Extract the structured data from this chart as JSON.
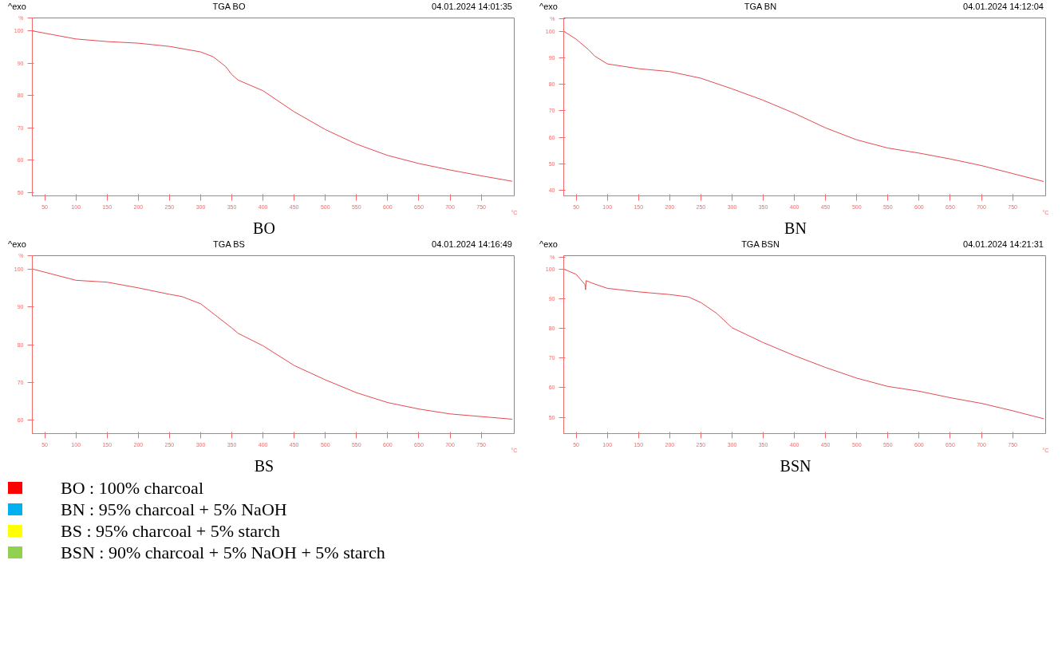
{
  "chart_data": [
    {
      "type": "line",
      "title": "TGA BO",
      "annotations": [
        "^exo",
        "04.01.2024 14:01:35",
        "BO"
      ],
      "xlabel": "°C",
      "xlim": [
        30,
        803
      ],
      "x": [
        30,
        100,
        150,
        200,
        250,
        300,
        320,
        340,
        350,
        360,
        400,
        450,
        500,
        550,
        600,
        650,
        700,
        750,
        800
      ],
      "series": [
        {
          "color": "#e34a50",
          "values": [
            100,
            97.5,
            96.7,
            96.2,
            95.2,
            93.5,
            92,
            89,
            86.5,
            84.8,
            81.5,
            75,
            69.5,
            65,
            61.5,
            59,
            57,
            55.2,
            53.5
          ]
        }
      ],
      "xticks": [
        50,
        100,
        150,
        200,
        250,
        300,
        350,
        400,
        450,
        500,
        550,
        600,
        650,
        700,
        750
      ],
      "ylim": [
        49,
        104
      ],
      "yticks": [
        50,
        60,
        70,
        80,
        90,
        100,
        {
          "value": 104,
          "label": "%"
        }
      ]
    },
    {
      "type": "line",
      "title": "TGA BN",
      "annotations": [
        "^exo",
        "04.01.2024 14:12:04",
        "BN"
      ],
      "x": [
        30,
        50,
        70,
        80,
        100,
        150,
        200,
        250,
        300,
        350,
        400,
        450,
        500,
        550,
        600,
        650,
        700,
        750,
        800
      ],
      "series": [
        {
          "color": "#e34a50",
          "values": [
            100,
            97,
            93,
            90.6,
            87.7,
            85.9,
            84.8,
            82.3,
            78.3,
            74,
            69.1,
            63.6,
            59.1,
            56,
            54.1,
            51.9,
            49.4,
            46.4,
            43.4
          ]
        }
      ],
      "xlabel": "°C",
      "xlim": [
        30,
        803
      ],
      "xticks": [
        50,
        100,
        150,
        200,
        250,
        300,
        350,
        400,
        450,
        500,
        550,
        600,
        650,
        700,
        750
      ],
      "ylim": [
        38,
        105
      ],
      "yticks": [
        40,
        50,
        60,
        70,
        80,
        90,
        100,
        {
          "value": 104.8,
          "label": "%"
        }
      ]
    },
    {
      "type": "line",
      "title": "TGA BS",
      "annotations": [
        "^exo",
        "04.01.2024 14:16:49",
        "BS"
      ],
      "x": [
        30,
        100,
        150,
        200,
        250,
        270,
        300,
        350,
        360,
        400,
        450,
        500,
        550,
        600,
        650,
        700,
        750,
        800
      ],
      "series": [
        {
          "color": "#e34a50",
          "values": [
            100,
            97,
            96.5,
            95,
            93.3,
            92.7,
            90.8,
            84.4,
            83,
            79.7,
            74.5,
            70.7,
            67.3,
            64.7,
            63,
            61.7,
            61,
            60.3
          ]
        }
      ],
      "xlabel": "°C",
      "xlim": [
        30,
        803
      ],
      "xticks": [
        50,
        100,
        150,
        200,
        250,
        300,
        350,
        400,
        450,
        500,
        550,
        600,
        650,
        700,
        750
      ],
      "ylim": [
        56.5,
        103.5
      ],
      "yticks": [
        60,
        70,
        80,
        90,
        100,
        {
          "value": 103.4,
          "label": "%"
        }
      ]
    },
    {
      "type": "line",
      "title": "TGA BSN",
      "annotations": [
        "^exo",
        "04.01.2024 14:21:31",
        "BSN"
      ],
      "x": [
        30,
        50,
        64,
        65,
        66,
        75,
        100,
        150,
        200,
        230,
        250,
        275,
        300,
        350,
        400,
        450,
        500,
        550,
        600,
        650,
        700,
        750,
        800
      ],
      "series": [
        {
          "color": "#e34a50",
          "values": [
            100,
            98.2,
            94.8,
            93,
            96.1,
            95.3,
            93.5,
            92.3,
            91.4,
            90.6,
            88.7,
            85.1,
            80.2,
            75.2,
            70.8,
            66.8,
            63.2,
            60.4,
            58.8,
            56.6,
            54.7,
            52.2,
            49.5
          ]
        }
      ],
      "xlabel": "°C",
      "xlim": [
        30,
        803
      ],
      "xticks": [
        50,
        100,
        150,
        200,
        250,
        300,
        350,
        400,
        450,
        500,
        550,
        600,
        650,
        700,
        750
      ],
      "ylim": [
        44.5,
        104.5
      ],
      "yticks": [
        50,
        60,
        70,
        80,
        90,
        100,
        {
          "value": 104,
          "label": "%"
        }
      ]
    },
    {
      "type": "other",
      "annotations": [
        "BO : 100% charcoal",
        "BN : 95% charcoal + 5% NaOH",
        "BS : 95% charcoal + 5% starch",
        "BSN : 90% charcoal + 5% NaOH + 5% starch"
      ],
      "colors": [
        "#ff0000",
        "#00b0f0",
        "#ffff00",
        "#92d050"
      ]
    }
  ]
}
